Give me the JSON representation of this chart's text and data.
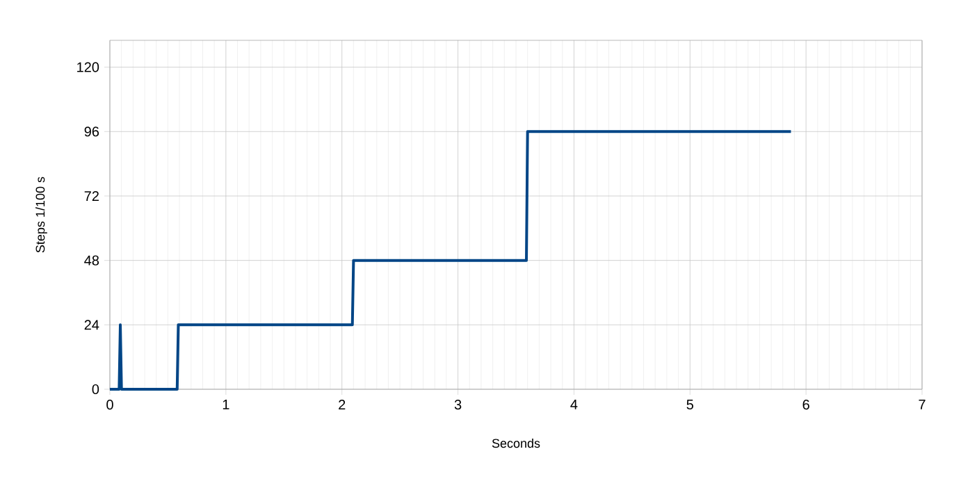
{
  "chart_data": {
    "type": "line",
    "xlabel": "Seconds",
    "ylabel": "Steps 1/100 s",
    "x": [
      0,
      0.08,
      0.09,
      0.1,
      0.58,
      0.59,
      2.09,
      2.1,
      3.59,
      3.6,
      5.87
    ],
    "series": [
      {
        "color": "#004586",
        "values": [
          0,
          0,
          24,
          0,
          0,
          24,
          24,
          48,
          48,
          96,
          96
        ]
      }
    ],
    "xlim": [
      0,
      7
    ],
    "xticks": [
      0,
      1,
      2,
      3,
      4,
      5,
      6,
      7
    ],
    "ylim": [
      0,
      130
    ],
    "yticks": [
      0,
      24,
      48,
      72,
      96,
      120
    ],
    "grid": true,
    "marker": "none",
    "line_style": "solid"
  }
}
